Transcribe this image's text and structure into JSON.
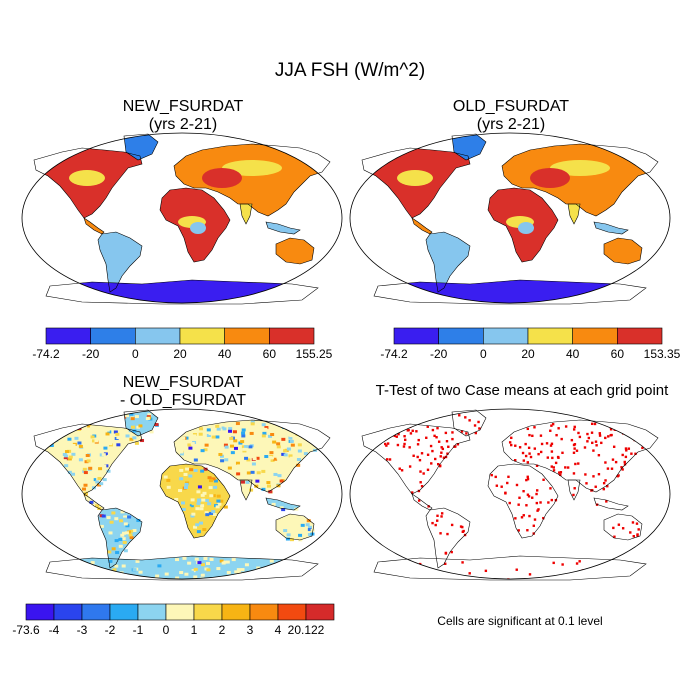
{
  "title": "JJA FSH (W/m^2)",
  "panels": [
    {
      "id": "new",
      "title_line1": "NEW_FSURDAT",
      "title_line2": "(yrs 2-21)"
    },
    {
      "id": "old",
      "title_line1": "OLD_FSURDAT",
      "title_line2": "(yrs 2-21)"
    },
    {
      "id": "diff",
      "title_line1": "NEW_FSURDAT",
      "title_line2": "- OLD_FSURDAT"
    },
    {
      "id": "ttest",
      "title_line1": "T-Test of two Case means at each grid point",
      "title_line2": ""
    }
  ],
  "colorbars": {
    "new": {
      "labels": [
        "-74.2",
        "-20",
        "0",
        "20",
        "40",
        "60",
        "155.25"
      ],
      "colors": [
        "#3a1ef0",
        "#2e7fe8",
        "#86c6ee",
        "#f5e14a",
        "#f88a10",
        "#d9302a"
      ]
    },
    "old": {
      "labels": [
        "-74.2",
        "-20",
        "0",
        "20",
        "40",
        "60",
        "153.35"
      ],
      "colors": [
        "#3a1ef0",
        "#2e7fe8",
        "#86c6ee",
        "#f5e14a",
        "#f88a10",
        "#d9302a"
      ]
    },
    "diff": {
      "labels": [
        "-73.6",
        "-4",
        "-3",
        "-2",
        "-1",
        "0",
        "1",
        "2",
        "3",
        "4",
        "20.122"
      ],
      "colors": [
        "#3a14f0",
        "#2a44ee",
        "#2f78ee",
        "#2aaaf2",
        "#8cd4f0",
        "#fdf7b8",
        "#f8d84a",
        "#f7b414",
        "#f88a10",
        "#f24a10",
        "#d52a2a"
      ]
    }
  },
  "note": "Cells are significant at 0.1 level",
  "palette": {
    "antarctica": "#3a1ef0",
    "significant": "#ee0000",
    "outline": "#000000"
  }
}
